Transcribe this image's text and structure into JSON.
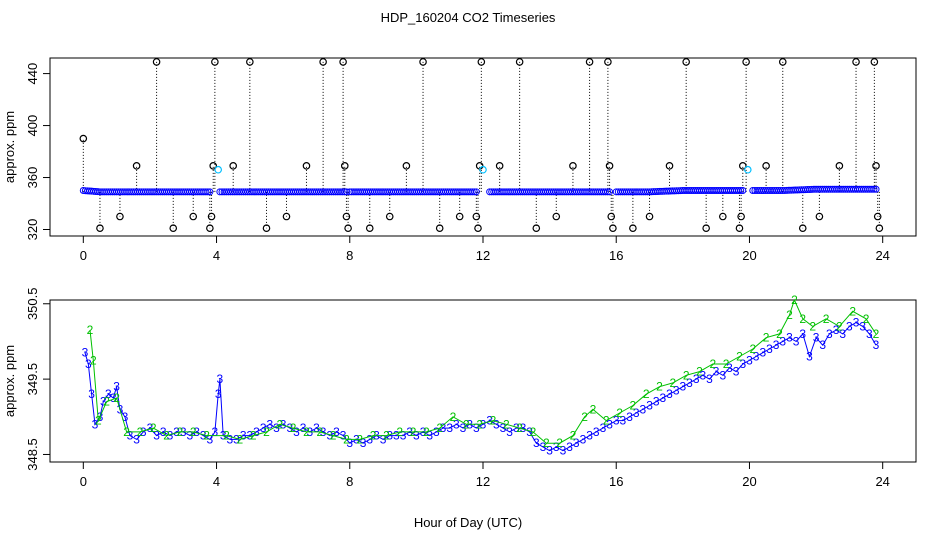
{
  "figure": {
    "title": "HDP_160204  CO2 Timeseries",
    "xlabel": "Hour of Day (UTC)"
  },
  "chart_data": [
    {
      "type": "scatter",
      "panel": "top",
      "ylabel": "approx. ppm",
      "xlim": [
        -1,
        25
      ],
      "ylim": [
        315,
        452
      ],
      "xticks": [
        0,
        4,
        8,
        12,
        16,
        20,
        24
      ],
      "yticks": [
        320,
        360,
        400,
        440
      ],
      "colors": {
        "points": "#0000ff",
        "spikes": "#000000",
        "highlight": "#00bfff"
      },
      "baseline_segments": [
        {
          "x": [
            0.0,
            0.5,
            1.0,
            1.5,
            2.0,
            2.5,
            3.0,
            3.5,
            3.8
          ],
          "y": [
            350,
            349,
            349,
            349,
            349,
            349,
            349,
            349,
            349
          ]
        },
        {
          "x": [
            4.1,
            5.0,
            6.0,
            7.0,
            7.9
          ],
          "y": [
            349,
            349,
            349,
            349,
            349
          ]
        },
        {
          "x": [
            8.0,
            9.0,
            10.0,
            11.0,
            11.8
          ],
          "y": [
            349,
            349,
            349,
            349,
            349
          ]
        },
        {
          "x": [
            12.2,
            13.0,
            14.0,
            15.0,
            15.8
          ],
          "y": [
            349,
            349,
            349,
            349,
            349
          ]
        },
        {
          "x": [
            16.0,
            17.0,
            18.0,
            19.0,
            19.8
          ],
          "y": [
            349,
            349,
            350,
            350,
            350
          ]
        },
        {
          "x": [
            20.1,
            21.0,
            22.0,
            23.0,
            23.8
          ],
          "y": [
            350,
            350,
            351,
            351,
            351
          ]
        }
      ],
      "spikes": [
        {
          "x": 0.0,
          "y": 390
        },
        {
          "x": 0.5,
          "y": 321
        },
        {
          "x": 1.1,
          "y": 330
        },
        {
          "x": 1.6,
          "y": 369
        },
        {
          "x": 2.2,
          "y": 449
        },
        {
          "x": 2.7,
          "y": 321
        },
        {
          "x": 3.3,
          "y": 330
        },
        {
          "x": 3.8,
          "y": 321
        },
        {
          "x": 3.85,
          "y": 330
        },
        {
          "x": 3.9,
          "y": 369
        },
        {
          "x": 3.95,
          "y": 449
        },
        {
          "x": 4.5,
          "y": 369
        },
        {
          "x": 5.0,
          "y": 449
        },
        {
          "x": 5.5,
          "y": 321
        },
        {
          "x": 6.1,
          "y": 330
        },
        {
          "x": 6.7,
          "y": 369
        },
        {
          "x": 7.2,
          "y": 449
        },
        {
          "x": 7.8,
          "y": 449
        },
        {
          "x": 7.85,
          "y": 369
        },
        {
          "x": 7.9,
          "y": 330
        },
        {
          "x": 7.95,
          "y": 321
        },
        {
          "x": 8.6,
          "y": 321
        },
        {
          "x": 9.2,
          "y": 330
        },
        {
          "x": 9.7,
          "y": 369
        },
        {
          "x": 10.2,
          "y": 449
        },
        {
          "x": 10.7,
          "y": 321
        },
        {
          "x": 11.3,
          "y": 330
        },
        {
          "x": 11.8,
          "y": 330
        },
        {
          "x": 11.85,
          "y": 321
        },
        {
          "x": 11.9,
          "y": 369
        },
        {
          "x": 11.95,
          "y": 449
        },
        {
          "x": 12.5,
          "y": 369
        },
        {
          "x": 13.1,
          "y": 449
        },
        {
          "x": 13.6,
          "y": 321
        },
        {
          "x": 14.2,
          "y": 330
        },
        {
          "x": 14.7,
          "y": 369
        },
        {
          "x": 15.2,
          "y": 449
        },
        {
          "x": 15.75,
          "y": 449
        },
        {
          "x": 15.8,
          "y": 369
        },
        {
          "x": 15.85,
          "y": 330
        },
        {
          "x": 15.9,
          "y": 321
        },
        {
          "x": 16.5,
          "y": 321
        },
        {
          "x": 17.0,
          "y": 330
        },
        {
          "x": 17.6,
          "y": 369
        },
        {
          "x": 18.1,
          "y": 449
        },
        {
          "x": 18.7,
          "y": 321
        },
        {
          "x": 19.2,
          "y": 330
        },
        {
          "x": 19.7,
          "y": 321
        },
        {
          "x": 19.75,
          "y": 330
        },
        {
          "x": 19.8,
          "y": 369
        },
        {
          "x": 19.9,
          "y": 449
        },
        {
          "x": 20.5,
          "y": 369
        },
        {
          "x": 21.0,
          "y": 449
        },
        {
          "x": 21.6,
          "y": 321
        },
        {
          "x": 22.1,
          "y": 330
        },
        {
          "x": 22.7,
          "y": 369
        },
        {
          "x": 23.2,
          "y": 449
        },
        {
          "x": 23.75,
          "y": 449
        },
        {
          "x": 23.8,
          "y": 369
        },
        {
          "x": 23.85,
          "y": 330
        },
        {
          "x": 23.9,
          "y": 321
        }
      ],
      "highlights": [
        {
          "x": 4.05,
          "y": 366
        },
        {
          "x": 12.0,
          "y": 366
        },
        {
          "x": 19.95,
          "y": 366
        }
      ]
    },
    {
      "type": "line",
      "panel": "bottom",
      "ylabel": "approx. ppm",
      "xlim": [
        -1,
        25
      ],
      "ylim": [
        348.4,
        350.55
      ],
      "xticks": [
        0,
        4,
        8,
        12,
        16,
        20,
        24
      ],
      "yticks": [
        348.5,
        349.5,
        350.5
      ],
      "colors": {
        "3": "#0000ff",
        "2": "#00c000"
      },
      "series": [
        {
          "label": "3",
          "x": [
            0.05,
            0.15,
            0.25,
            0.35,
            0.5,
            0.6,
            0.75,
            0.9,
            1.0,
            1.1,
            1.25,
            1.4,
            1.6,
            1.8,
            2.0,
            2.2,
            2.4,
            2.6,
            2.8,
            3.0,
            3.2,
            3.4,
            3.6,
            3.8,
            3.95,
            4.05,
            4.1,
            4.2,
            4.4,
            4.6,
            4.8,
            5.0,
            5.2,
            5.4,
            5.6,
            5.8,
            6.0,
            6.2,
            6.4,
            6.6,
            6.8,
            7.0,
            7.2,
            7.4,
            7.6,
            7.8,
            8.0,
            8.2,
            8.4,
            8.6,
            8.8,
            9.0,
            9.2,
            9.4,
            9.6,
            9.8,
            10.0,
            10.2,
            10.4,
            10.6,
            10.8,
            11.0,
            11.2,
            11.4,
            11.6,
            11.8,
            12.0,
            12.2,
            12.4,
            12.6,
            12.8,
            13.0,
            13.2,
            13.4,
            13.6,
            13.8,
            14.0,
            14.2,
            14.4,
            14.6,
            14.8,
            15.0,
            15.2,
            15.4,
            15.6,
            15.8,
            16.0,
            16.2,
            16.4,
            16.6,
            16.8,
            17.0,
            17.2,
            17.4,
            17.6,
            17.8,
            18.0,
            18.2,
            18.4,
            18.6,
            18.8,
            19.0,
            19.2,
            19.4,
            19.6,
            19.8,
            20.0,
            20.2,
            20.4,
            20.6,
            20.8,
            21.0,
            21.2,
            21.4,
            21.6,
            21.8,
            22.0,
            22.2,
            22.4,
            22.6,
            22.8,
            23.0,
            23.2,
            23.4,
            23.6,
            23.8
          ],
          "y": [
            349.85,
            349.7,
            349.3,
            348.9,
            349.0,
            349.2,
            349.3,
            349.25,
            349.4,
            349.1,
            349.0,
            348.75,
            348.7,
            348.8,
            348.85,
            348.75,
            348.8,
            348.75,
            348.8,
            348.8,
            348.75,
            348.8,
            348.75,
            348.7,
            348.8,
            349.3,
            349.5,
            348.75,
            348.7,
            348.7,
            348.75,
            348.75,
            348.8,
            348.85,
            348.9,
            348.85,
            348.9,
            348.85,
            348.8,
            348.85,
            348.8,
            348.85,
            348.8,
            348.75,
            348.8,
            348.75,
            348.65,
            348.7,
            348.65,
            348.7,
            348.75,
            348.7,
            348.75,
            348.75,
            348.75,
            348.8,
            348.75,
            348.8,
            348.75,
            348.8,
            348.85,
            348.85,
            348.9,
            348.85,
            348.9,
            348.85,
            348.9,
            348.95,
            348.9,
            348.85,
            348.8,
            348.85,
            348.85,
            348.8,
            348.65,
            348.6,
            348.55,
            348.6,
            348.55,
            348.6,
            348.65,
            348.7,
            348.75,
            348.8,
            348.85,
            348.9,
            348.95,
            348.95,
            349.0,
            349.05,
            349.1,
            349.15,
            349.2,
            349.25,
            349.3,
            349.35,
            349.4,
            349.45,
            349.5,
            349.55,
            349.5,
            349.6,
            349.55,
            349.65,
            349.6,
            349.7,
            349.75,
            349.8,
            349.85,
            349.9,
            349.95,
            350.0,
            350.05,
            350.0,
            350.1,
            349.8,
            350.05,
            349.95,
            350.1,
            350.15,
            350.1,
            350.2,
            350.25,
            350.2,
            350.1,
            349.95
          ],
          "labels_drawn": "3"
        },
        {
          "label": "2",
          "x": [
            0.2,
            0.3,
            0.45,
            0.7,
            1.0,
            1.3,
            1.7,
            2.1,
            2.5,
            2.9,
            3.3,
            3.7,
            4.3,
            4.7,
            5.1,
            5.5,
            5.9,
            6.3,
            6.7,
            7.1,
            7.5,
            7.9,
            8.3,
            8.7,
            9.1,
            9.5,
            9.9,
            10.3,
            10.7,
            11.1,
            11.5,
            11.9,
            12.3,
            12.7,
            13.1,
            13.5,
            13.9,
            14.3,
            14.7,
            15.05,
            15.3,
            15.7,
            16.1,
            16.5,
            16.9,
            17.3,
            17.7,
            18.1,
            18.5,
            18.9,
            19.3,
            19.7,
            20.1,
            20.5,
            20.9,
            21.2,
            21.35,
            21.6,
            21.9,
            22.3,
            22.7,
            23.1,
            23.5,
            23.8
          ],
          "y": [
            350.15,
            349.75,
            348.95,
            349.2,
            349.25,
            348.8,
            348.8,
            348.85,
            348.75,
            348.8,
            348.8,
            348.75,
            348.75,
            348.7,
            348.75,
            348.8,
            348.9,
            348.85,
            348.8,
            348.8,
            348.75,
            348.7,
            348.7,
            348.75,
            348.75,
            348.8,
            348.8,
            348.8,
            348.85,
            349.0,
            348.9,
            348.9,
            348.95,
            348.9,
            348.85,
            348.8,
            348.65,
            348.65,
            348.75,
            349.0,
            349.1,
            348.95,
            349.05,
            349.15,
            349.3,
            349.4,
            349.45,
            349.55,
            349.6,
            349.7,
            349.7,
            349.8,
            349.9,
            350.05,
            350.1,
            350.35,
            350.55,
            350.3,
            350.2,
            350.3,
            350.2,
            350.4,
            350.3,
            350.1
          ],
          "labels_drawn": "2"
        }
      ]
    }
  ]
}
